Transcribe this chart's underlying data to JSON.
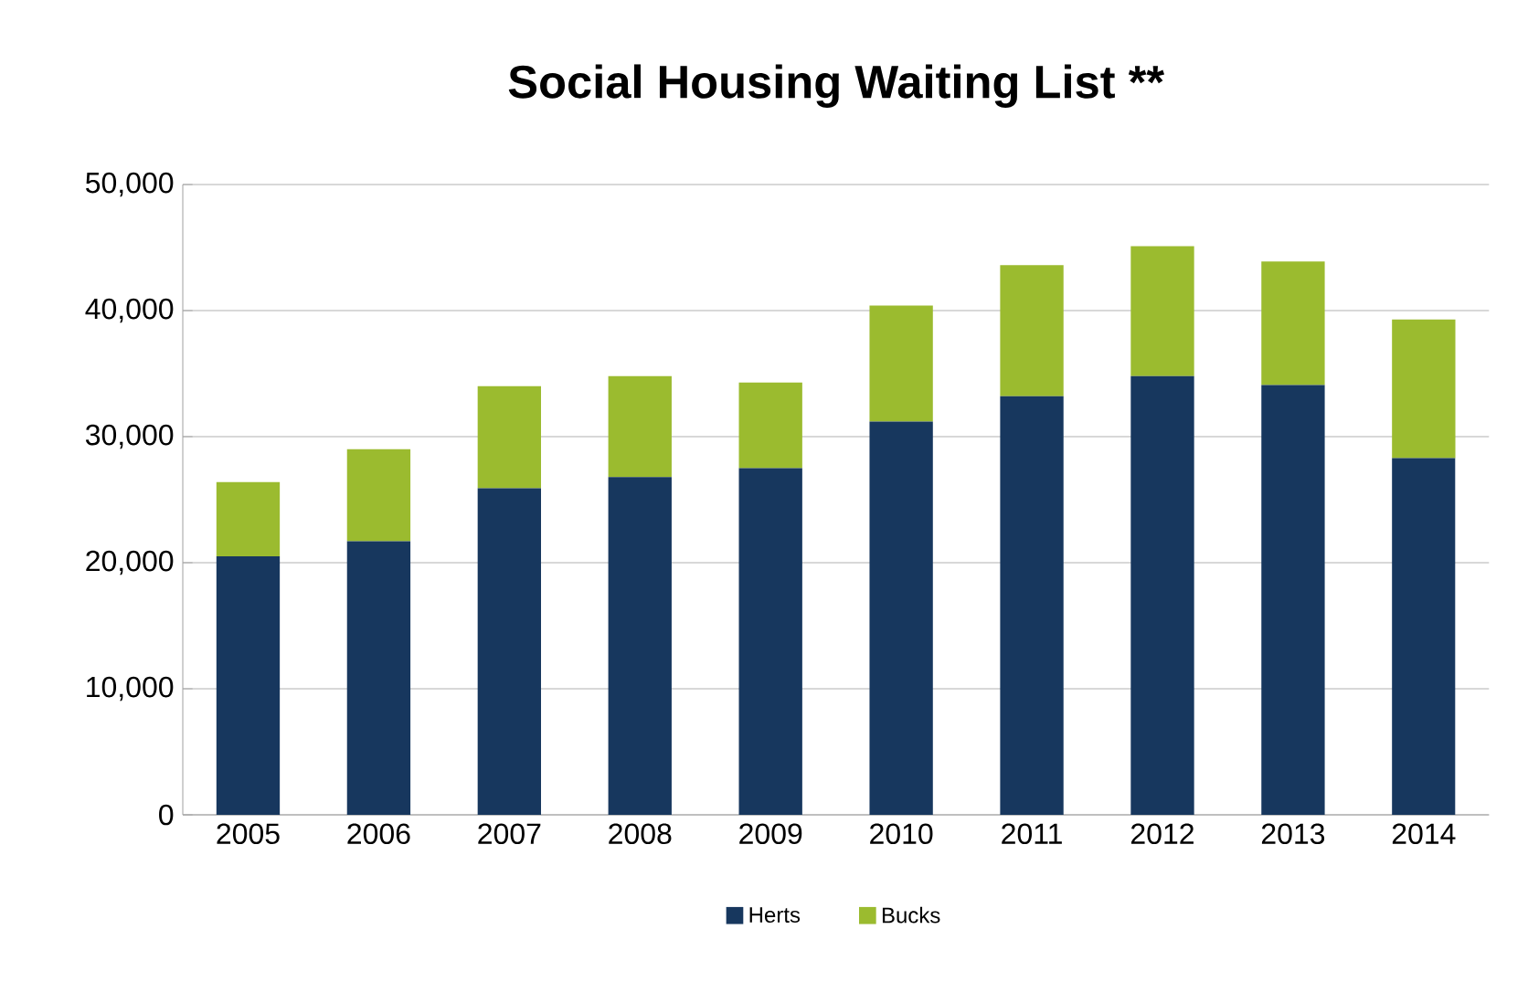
{
  "chart_data": {
    "type": "bar",
    "title": "Social Housing Waiting List **",
    "stacked": true,
    "categories": [
      "2005",
      "2006",
      "2007",
      "2008",
      "2009",
      "2010",
      "2011",
      "2012",
      "2013",
      "2014"
    ],
    "series": [
      {
        "name": "Herts",
        "color": "#17375e",
        "values": [
          20500,
          21700,
          25900,
          26800,
          27500,
          31200,
          33200,
          34800,
          34100,
          28300
        ]
      },
      {
        "name": "Bucks",
        "color": "#9bbb2f",
        "values": [
          5900,
          7300,
          8100,
          8000,
          6800,
          9200,
          10400,
          10300,
          9800,
          11000
        ]
      }
    ],
    "ylim": [
      0,
      50000
    ],
    "yticks": [
      {
        "value": 0,
        "label": "0"
      },
      {
        "value": 10000,
        "label": "10,000"
      },
      {
        "value": 20000,
        "label": "20,000"
      },
      {
        "value": 30000,
        "label": "30,000"
      },
      {
        "value": 40000,
        "label": "40,000"
      },
      {
        "value": 50000,
        "label": "50,000"
      }
    ],
    "grid": "y",
    "legend": "bottom"
  }
}
